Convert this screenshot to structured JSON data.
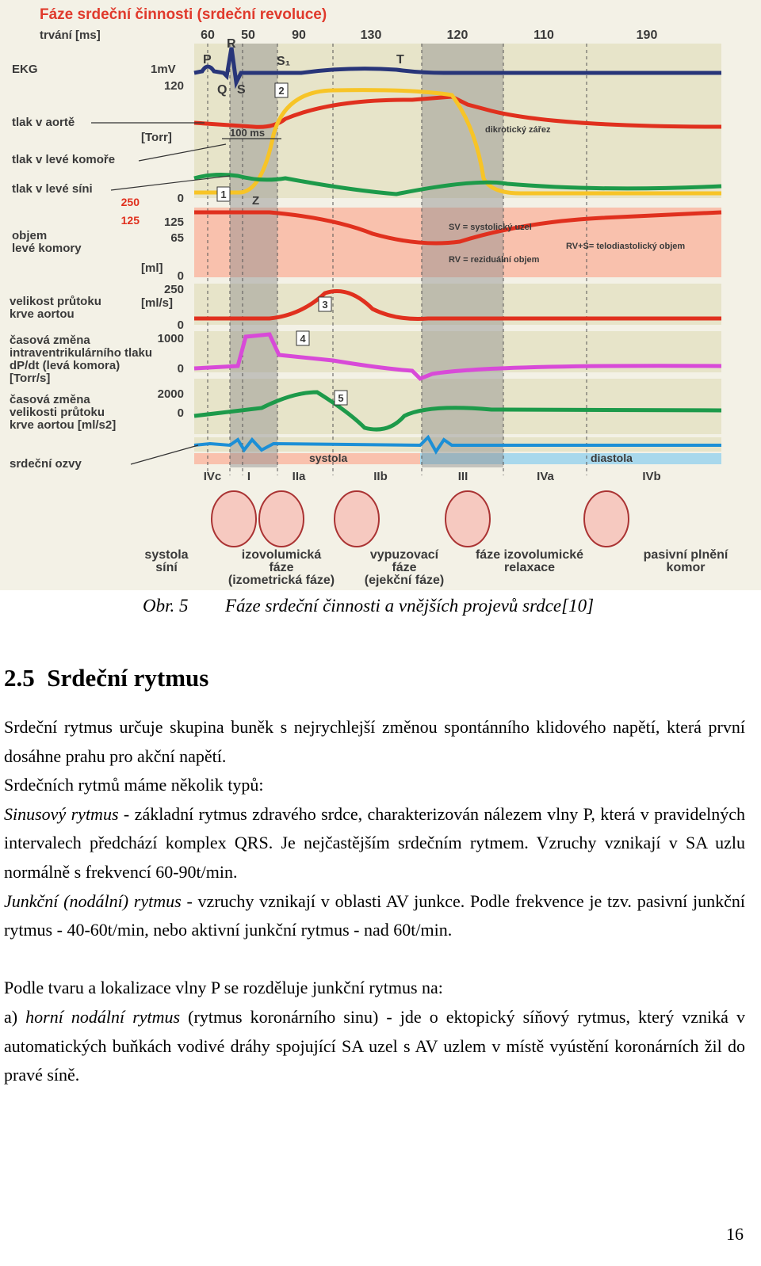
{
  "figure": {
    "title": "Fáze srdeční činnosti (srdeční revoluce)",
    "duration_label": "trvání [ms]",
    "durations": [
      "60",
      "50",
      "90",
      "130",
      "120",
      "110",
      "190"
    ],
    "wave_labels": [
      "P",
      "R",
      "Q",
      "S",
      "S₁",
      "T"
    ],
    "row_labels": [
      [
        "EKG"
      ],
      [
        "tlak v aortě"
      ],
      [
        "tlak v levé komoře"
      ],
      [
        "tlak v levé síni"
      ],
      [
        "objem",
        "levé komory"
      ],
      [
        "velikost průtoku",
        "krve aortou"
      ],
      [
        "časová změna",
        "intraventrikulárního tlaku",
        "dP/dt (levá komora)",
        "[Torr/s]"
      ],
      [
        "časová změna",
        "velikosti průtoku",
        "krve aortou [ml/s2]"
      ],
      [
        "srdeční ozvy"
      ]
    ],
    "axis_labels": [
      "1mV",
      "120",
      "[Torr]",
      "0",
      "250",
      "125",
      "125",
      "65",
      "[ml]",
      "0",
      "250",
      "[ml/s]",
      "0",
      "1000",
      "0",
      "2000",
      "0"
    ],
    "markers": [
      "1",
      "2",
      "3",
      "4",
      "5"
    ],
    "annotations": [
      "Z",
      "100 ms",
      "dikrotický zářez",
      "SV = systolický uzel",
      "RV = reziduální objem",
      "RV+S= telodiastolický objem"
    ],
    "phases": [
      "systola",
      "diastola"
    ],
    "phase_codes": [
      "IVc",
      "I",
      "IIa",
      "IIb",
      "III",
      "IVa",
      "IVb"
    ],
    "stage_labels": [
      [
        "systola",
        "síní"
      ],
      [
        "izovolumická",
        "fáze",
        "(izometrická fáze)"
      ],
      [
        "vypuzovací",
        "fáze",
        "(ejekční fáze)"
      ],
      [
        "fáze izovolumické",
        "relaxace"
      ],
      [
        "pasivní plnění",
        "komor"
      ]
    ]
  },
  "caption": {
    "label": "Obr. 5",
    "text": "Fáze srdeční činnosti a vnějších projevů srdce[10]"
  },
  "section": {
    "number": "2.5",
    "title": "Srdeční rytmus"
  },
  "paragraphs": [
    {
      "text": "Srdeční rytmus určuje skupina buněk s nejrychlejší změnou spontánního klidového napětí, která první dosáhne prahu pro akční napětí."
    },
    {
      "text": "Srdečních rytmů máme několik typů:"
    },
    {
      "lead": "Sinusový rytmus",
      "text": " - základní rytmus zdravého srdce, charakterizován nálezem vlny P, která v pravidelných intervalech předchází komplex QRS. Je nejčastějším srdečním rytmem. Vzruchy vznikají v SA uzlu normálně s frekvencí 60-90t/min."
    },
    {
      "lead": "Junkční (nodální) rytmus",
      "text": " - vzruchy vznikají v oblasti AV junkce. Podle frekvence je tzv. pasivní junkční rytmus - 40-60t/min, nebo aktivní junkční rytmus - nad 60t/min."
    },
    {
      "text": "Podle tvaru a lokalizace vlny P se rozděluje junkční rytmus na:"
    },
    {
      "prefix": "a) ",
      "lead": "horní nodální rytmus",
      "text": " (rytmus koronárního sinu) - jde o ektopický síňový rytmus, který vzniká v automatických buňkách vodivé dráhy spojující SA uzel s AV uzlem v místě vyústění koronárních žil do pravé síně."
    }
  ],
  "page_number": "16"
}
